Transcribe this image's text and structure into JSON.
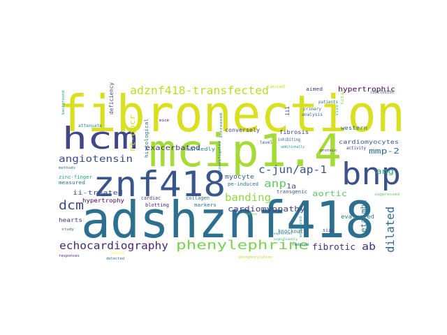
{
  "wordcloud": {
    "words": [
      {
        "text": "fibronection",
        "color": "#d9e021"
      },
      {
        "text": "adshznf418",
        "color": "#2c6f8e"
      },
      {
        "text": "mcip1.4",
        "color": "#a5db36"
      },
      {
        "text": "znf418",
        "color": "#39568c"
      },
      {
        "text": "hcm",
        "color": "#3f4788"
      },
      {
        "text": "bnp",
        "color": "#3b528b"
      },
      {
        "text": "adznf418-transfected",
        "color": "#b8de29"
      },
      {
        "text": "phenylephrine",
        "color": "#7ad151"
      },
      {
        "text": "echocardiography",
        "color": "#482878"
      },
      {
        "text": "dilated",
        "color": "#31688e"
      },
      {
        "text": "c-jun/ap-1",
        "color": "#3b528b"
      },
      {
        "text": "anp",
        "color": "#5ec962"
      },
      {
        "text": "dcm",
        "color": "#404788"
      },
      {
        "text": "angiotensin",
        "color": "#3e4a89"
      },
      {
        "text": "banding",
        "color": "#8fd744"
      },
      {
        "text": "cardiomyopathy",
        "color": "#433e85"
      },
      {
        "text": "exacerbated",
        "color": "#46337e"
      },
      {
        "text": "hypertrophic",
        "color": "#440154"
      },
      {
        "text": "mmp-2",
        "color": "#2d708e"
      },
      {
        "text": "ang",
        "color": "#29af7f"
      },
      {
        "text": "aortic",
        "color": "#5ec962"
      },
      {
        "text": "fibrotic",
        "color": "#472c7a"
      },
      {
        "text": "ab",
        "color": "#472d7b"
      },
      {
        "text": "beta-mhc",
        "color": "#2a788e"
      },
      {
        "text": "1a",
        "color": "#3c508b"
      },
      {
        "text": "rt-qpcr",
        "color": "#cde11d"
      },
      {
        "text": "ii-treated",
        "color": "#3d4d8a"
      },
      {
        "text": "hypertrophy",
        "color": "#440154"
      },
      {
        "text": "myocyte",
        "color": "#33638d"
      },
      {
        "text": "fibrosis",
        "color": "#443a83"
      },
      {
        "text": "cardiomyocytes",
        "color": "#3b528b"
      },
      {
        "text": "conversely",
        "color": "#414487"
      },
      {
        "text": "western",
        "color": "#31688e"
      },
      {
        "text": "evaluated",
        "color": "#2a788e"
      },
      {
        "text": "hearts",
        "color": "#46327e"
      },
      {
        "text": "measured",
        "color": "#2d708e"
      },
      {
        "text": "zinc-finger",
        "color": "#1fa187"
      },
      {
        "text": "collagen",
        "color": "#2e6e8e"
      },
      {
        "text": "markers",
        "color": "#2c728e"
      },
      {
        "text": "knockout",
        "color": "#2c728e"
      },
      {
        "text": "size",
        "color": "#3e4989"
      },
      {
        "text": "transgenic",
        "color": "#3b528b"
      },
      {
        "text": "pe-induced",
        "color": "#2a788e"
      },
      {
        "text": "markedly",
        "color": "#27808e"
      },
      {
        "text": "cardiac",
        "color": "#472f7d"
      },
      {
        "text": "blotting",
        "color": "#482173"
      },
      {
        "text": "histological",
        "color": "#2e6e8e"
      },
      {
        "text": "attenuate",
        "color": "#24878e"
      },
      {
        "text": "deficiency",
        "color": "#3e4989"
      },
      {
        "text": "aimed",
        "color": "#453781"
      },
      {
        "text": "caused",
        "color": "#c8e020"
      },
      {
        "text": "iii",
        "color": "#423f85"
      },
      {
        "text": "primary",
        "color": "#2a768e"
      },
      {
        "text": "patients",
        "color": "#2f6c8e"
      },
      {
        "text": "analysis",
        "color": "#355f8d"
      },
      {
        "text": "total",
        "color": "#90d743"
      },
      {
        "text": "vivo",
        "color": "#3aba76"
      },
      {
        "text": "conclusion",
        "color": "#3b528b"
      },
      {
        "text": "activity",
        "color": "#46327e"
      },
      {
        "text": "background",
        "color": "#1f958b"
      },
      {
        "text": "mice",
        "color": "#460a5d"
      },
      {
        "text": "level",
        "color": "#3d4e8a"
      },
      {
        "text": "increased",
        "color": "#2a768e"
      },
      {
        "text": "investigated",
        "color": "#29798e"
      },
      {
        "text": "inhibiting",
        "color": "#3a548c"
      },
      {
        "text": "additionally",
        "color": "#21918c"
      },
      {
        "text": "protein",
        "color": "#463480"
      },
      {
        "text": "suppressed",
        "color": "#5ec962"
      },
      {
        "text": "methods",
        "color": "#2d708e"
      },
      {
        "text": "study",
        "color": "#31688e"
      },
      {
        "text": "responses",
        "color": "#482475"
      },
      {
        "text": "detected",
        "color": "#2e6e8e"
      },
      {
        "text": "enhanced",
        "color": "#21918c"
      },
      {
        "text": "reduced",
        "color": "#31688e"
      },
      {
        "text": "phosphorylation",
        "color": "#b5de2b"
      },
      {
        "text": "results",
        "color": "#fde725"
      },
      {
        "text": "mrna",
        "color": "#6ccd5a"
      },
      {
        "text": "expression",
        "color": "#2c728e"
      },
      {
        "text": "significantly",
        "color": "#20a386"
      }
    ]
  }
}
